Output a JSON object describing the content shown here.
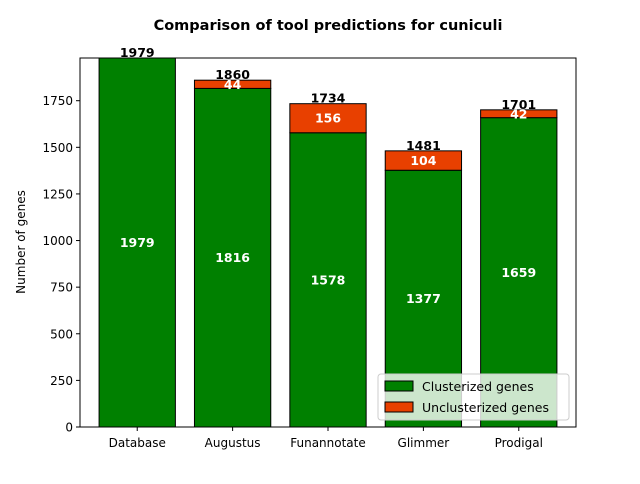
{
  "chart_data": {
    "type": "bar",
    "stacked": true,
    "title": "Comparison of tool predictions for cuniculi",
    "xlabel": "",
    "ylabel": "Number of genes",
    "categories": [
      "Database",
      "Augustus",
      "Funannotate",
      "Glimmer",
      "Prodigal"
    ],
    "series": [
      {
        "name": "Clusterized genes",
        "color": "#008000",
        "values": [
          1979,
          1816,
          1578,
          1377,
          1659
        ]
      },
      {
        "name": "Unclusterized genes",
        "color": "#e84000",
        "values": [
          0,
          44,
          156,
          104,
          42
        ]
      }
    ],
    "totals": [
      1979,
      1860,
      1734,
      1481,
      1701
    ],
    "ylim": [
      0,
      1979
    ],
    "yticks": [
      0,
      250,
      500,
      750,
      1000,
      1250,
      1500,
      1750
    ],
    "grid": false,
    "legend_position": "lower-right"
  }
}
